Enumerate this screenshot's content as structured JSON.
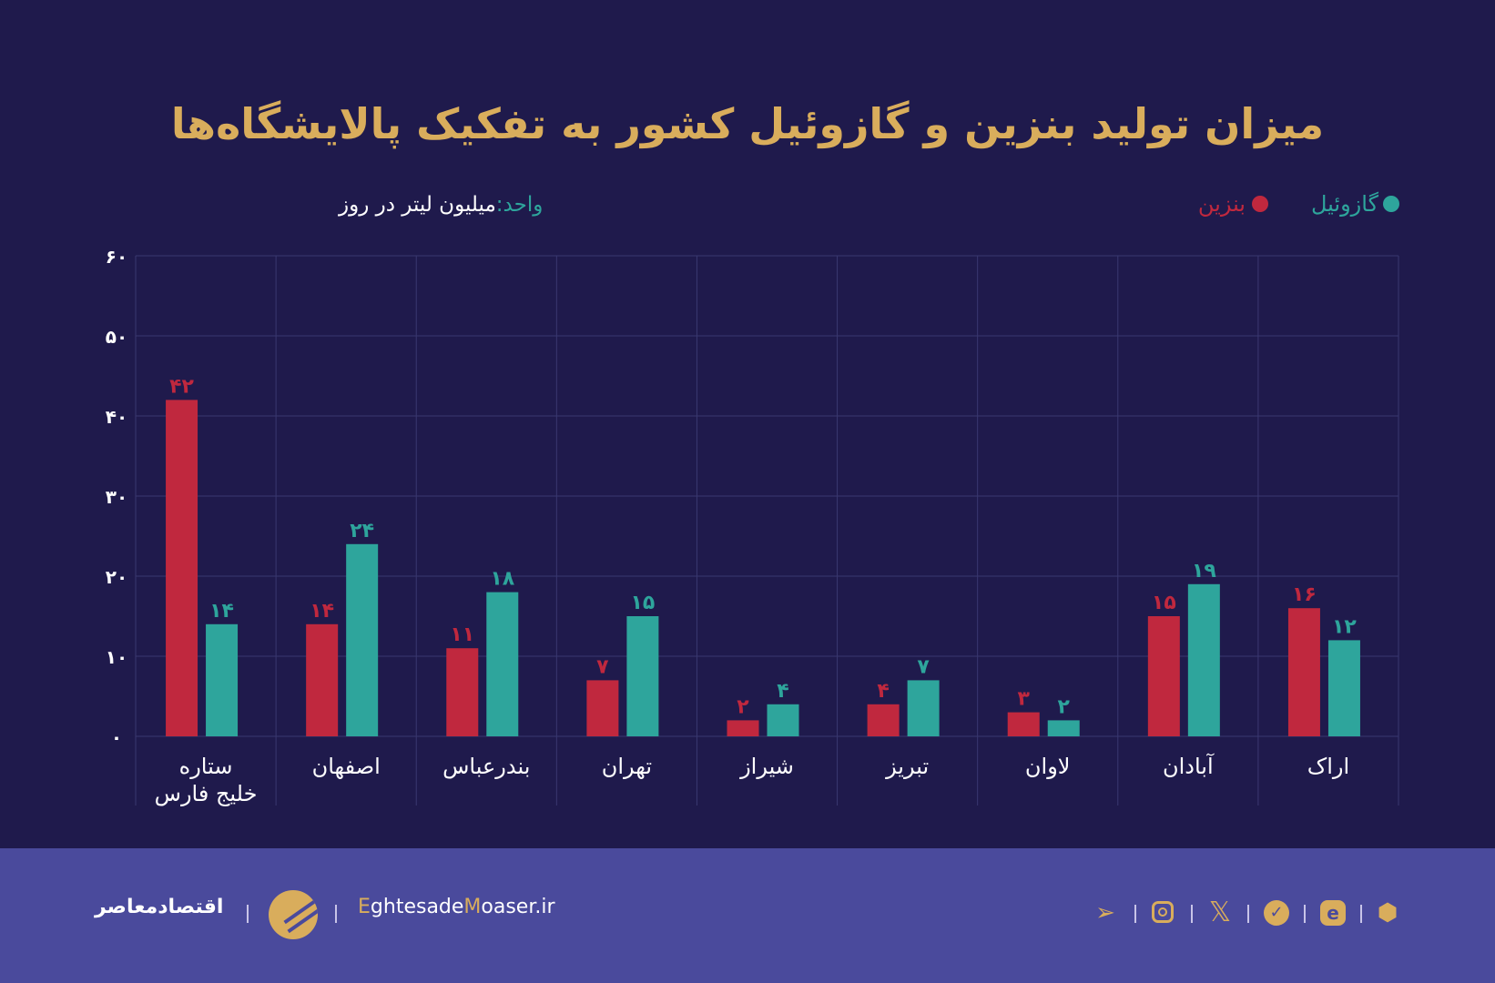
{
  "colors": {
    "background": "#1f1a4c",
    "footer": "#4a4a9c",
    "petrol": "#c0283e",
    "diesel": "#2ea59c",
    "title": "#d9ad5c",
    "grid": "#3a3870"
  },
  "chart_data": {
    "type": "bar",
    "title": "میزان تولید بنزین و گازوئیل کشور به تفکیک پالایشگاه‌ها",
    "unit_label": "واحد:",
    "unit_value": "میلیون لیتر در روز",
    "legend_position": "top-right",
    "categories": [
      "ستاره خلیج فارس",
      "اصفهان",
      "بندرعباس",
      "تهران",
      "شیراز",
      "تبریز",
      "لاوان",
      "آبادان",
      "اراک"
    ],
    "series": [
      {
        "name": "بنزین",
        "color": "#c0283e",
        "values": [
          42,
          14,
          11,
          7,
          2,
          4,
          3,
          15,
          16
        ],
        "labels": [
          "۴۲",
          "۱۴",
          "۱۱",
          "۷",
          "۲",
          "۴",
          "۳",
          "۱۵",
          "۱۶"
        ]
      },
      {
        "name": "گازوئیل",
        "color": "#2ea59c",
        "values": [
          14,
          24,
          18,
          15,
          4,
          7,
          2,
          19,
          12
        ],
        "labels": [
          "۱۴",
          "۲۴",
          "۱۸",
          "۱۵",
          "۴",
          "۷",
          "۲",
          "۱۹",
          "۱۲"
        ]
      }
    ],
    "ylim": [
      0,
      60
    ],
    "yticks": [
      0,
      10,
      20,
      30,
      40,
      50,
      60
    ],
    "ytick_labels": [
      "۰",
      "۱۰",
      "۲۰",
      "۳۰",
      "۴۰",
      "۵۰",
      "۶۰"
    ],
    "grid": true
  },
  "footer": {
    "brand_fa": "اقتصادمعاصر",
    "site_e1": "E",
    "site_mid": "ghtesade",
    "site_m": "M",
    "site_rest": "oaser.ir",
    "icons": [
      "telegram-icon",
      "instagram-icon",
      "x-icon",
      "bale-icon",
      "eitaa-icon",
      "rubika-icon"
    ]
  }
}
